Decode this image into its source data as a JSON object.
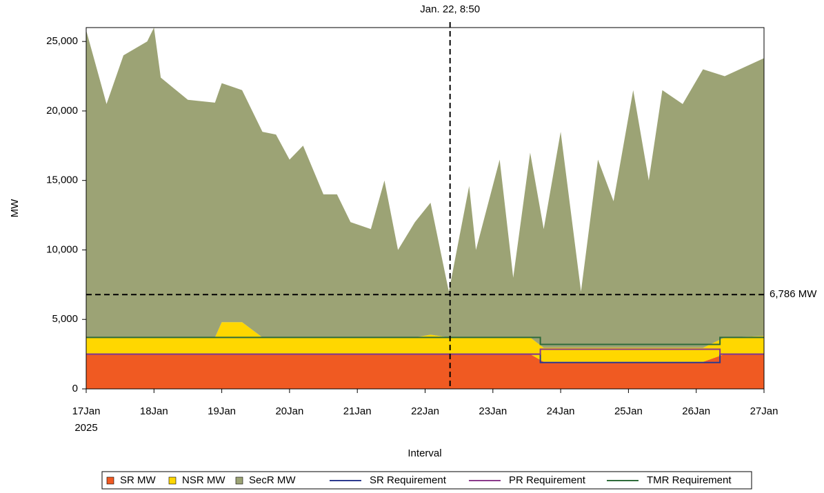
{
  "chart_data": {
    "type": "stacked_area",
    "x_label": "Interval",
    "y_label": "MW",
    "x_year_label": "2025",
    "xlim": [
      0,
      10
    ],
    "ylim": [
      0,
      26000
    ],
    "xticks": [
      {
        "value": 0,
        "label": "17Jan"
      },
      {
        "value": 1,
        "label": "18Jan"
      },
      {
        "value": 2,
        "label": "19Jan"
      },
      {
        "value": 3,
        "label": "20Jan"
      },
      {
        "value": 4,
        "label": "21Jan"
      },
      {
        "value": 5,
        "label": "22Jan"
      },
      {
        "value": 6,
        "label": "23Jan"
      },
      {
        "value": 7,
        "label": "24Jan"
      },
      {
        "value": 8,
        "label": "25Jan"
      },
      {
        "value": 9,
        "label": "26Jan"
      },
      {
        "value": 10,
        "label": "27Jan"
      }
    ],
    "yticks": [
      0,
      {
        "value": 5000,
        "label": "5,000"
      },
      {
        "value": 10000,
        "label": "10,000"
      },
      {
        "value": 15000,
        "label": "15,000"
      },
      {
        "value": 20000,
        "label": "20,000"
      },
      {
        "value": 25000,
        "label": "25,000"
      }
    ],
    "x": [
      0,
      0.3,
      0.55,
      0.9,
      1.0,
      1.1,
      1.5,
      1.9,
      2.0,
      2.3,
      2.6,
      2.8,
      3.0,
      3.2,
      3.5,
      3.7,
      3.9,
      4.2,
      4.4,
      4.6,
      4.85,
      5.08,
      5.35,
      5.65,
      5.75,
      6.1,
      6.3,
      6.55,
      6.75,
      7.0,
      7.3,
      7.55,
      7.78,
      8.07,
      8.3,
      8.5,
      8.8,
      9.1,
      9.42,
      10
    ],
    "series": [
      {
        "name": "SR MW",
        "color": "#f05a22",
        "values": [
          2500,
          2500,
          2500,
          2500,
          2500,
          2500,
          2500,
          2500,
          2500,
          2500,
          2500,
          2500,
          2500,
          2500,
          2500,
          2500,
          2500,
          2500,
          2500,
          2500,
          2500,
          2500,
          2500,
          2500,
          2500,
          2500,
          2500,
          2500,
          1950,
          1950,
          1950,
          1950,
          1950,
          1950,
          1950,
          1950,
          1950,
          1950,
          2500,
          2500
        ]
      },
      {
        "name": "NSR MW",
        "color": "#ffd700",
        "values": [
          1200,
          1200,
          1200,
          1200,
          1200,
          1200,
          1200,
          1200,
          2300,
          2300,
          1200,
          1200,
          1200,
          1200,
          1200,
          1200,
          1200,
          1200,
          1200,
          1200,
          1200,
          1400,
          1200,
          1200,
          1200,
          1200,
          1200,
          1200,
          1000,
          1000,
          1000,
          1000,
          1000,
          1000,
          1000,
          1000,
          1000,
          1000,
          1200,
          1300
        ]
      },
      {
        "name": "SecR MW",
        "color": "#9ca375",
        "values": [
          22100,
          16800,
          20300,
          21300,
          22300,
          18700,
          17100,
          16900,
          17200,
          16700,
          14800,
          14600,
          12800,
          13800,
          10300,
          10300,
          8300,
          7800,
          11300,
          6300,
          8300,
          9500,
          3300,
          10900,
          6300,
          12800,
          4300,
          13300,
          8550,
          15550,
          4050,
          13550,
          10550,
          18550,
          12050,
          18550,
          17550,
          20050,
          18800,
          20000
        ]
      }
    ],
    "lines": [
      {
        "name": "SR Requirement",
        "color": "#2b3a8f",
        "x": [
          0,
          6.7,
          6.7,
          9.35,
          9.35,
          10
        ],
        "values": [
          2500,
          2500,
          1900,
          1900,
          2500,
          2500
        ]
      },
      {
        "name": "PR Requirement",
        "color": "#8b3a8b",
        "x": [
          0,
          6.7,
          6.7,
          9.35,
          9.35,
          10
        ],
        "values": [
          2500,
          2500,
          2850,
          2850,
          2500,
          2500
        ]
      },
      {
        "name": "TMR Requirement",
        "color": "#2e6b3a",
        "x": [
          0,
          6.7,
          6.7,
          9.35,
          9.35,
          10
        ],
        "values": [
          3700,
          3700,
          3200,
          3200,
          3700,
          3700
        ]
      }
    ],
    "vline": {
      "x": 5.368,
      "label": "Jan. 22, 8:50"
    },
    "hline": {
      "y": 6786,
      "label": "6,786 MW"
    }
  }
}
